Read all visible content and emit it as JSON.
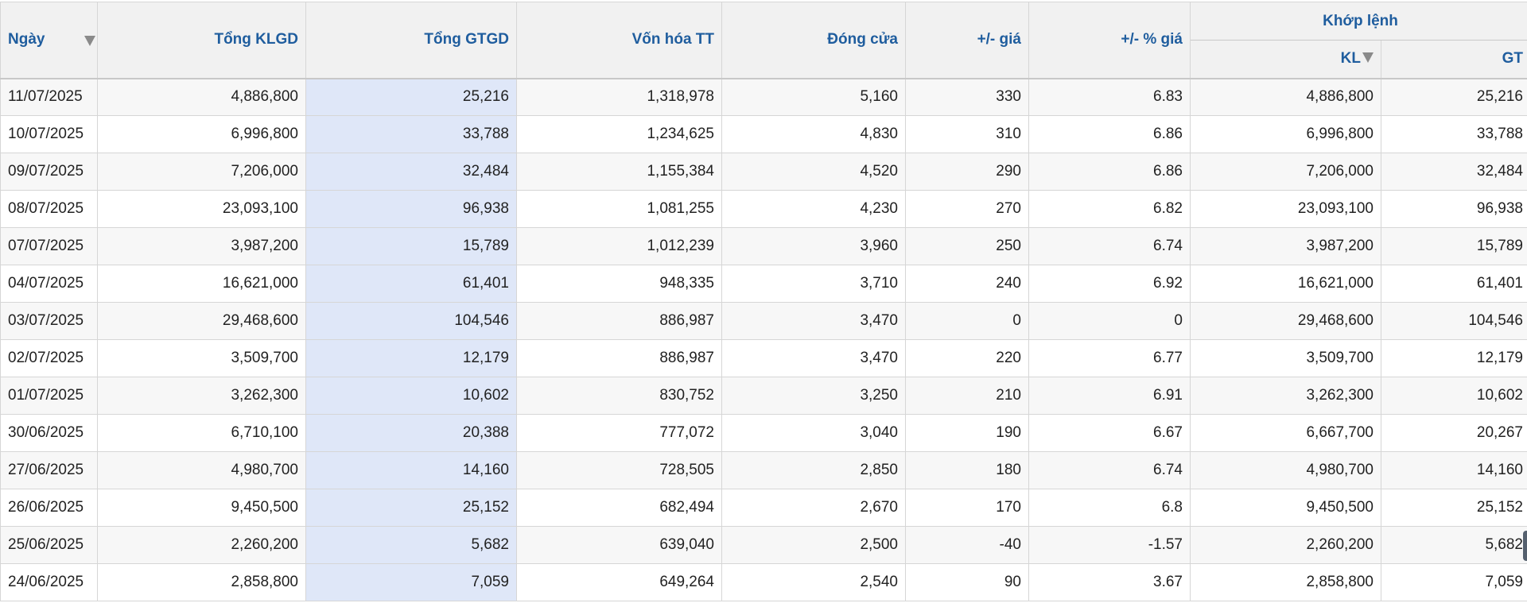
{
  "headers": {
    "date": "Ngày",
    "tong_klgd": "Tổng KLGD",
    "tong_gtgd": "Tổng GTGD",
    "von_hoa": "Vốn hóa TT",
    "dong_cua": "Đóng cửa",
    "change": "+/- giá",
    "change_pct": "+/- % giá",
    "khop_lenh": "Khớp lệnh",
    "kl": "KL",
    "gt": "GT"
  },
  "icons": {
    "sort_date": "sort-down-icon",
    "sort_kl": "sort-down-icon"
  },
  "colors": {
    "header_text": "#1f5d9e",
    "up": "#d400c8",
    "unchanged": "#f08c00",
    "down": "#e00000",
    "green": "#189018",
    "highlight_column": "#dfe7f8"
  },
  "rows": [
    {
      "date": "11/07/2025",
      "tong_klgd": "4,886,800",
      "tong_gtgd": "25,216",
      "von_hoa": "1,318,978",
      "dong_cua": "5,160",
      "change": "330",
      "change_pct": "6.83",
      "trend": "up",
      "kl": "4,886,800",
      "gt": "25,216"
    },
    {
      "date": "10/07/2025",
      "tong_klgd": "6,996,800",
      "tong_gtgd": "33,788",
      "von_hoa": "1,234,625",
      "dong_cua": "4,830",
      "change": "310",
      "change_pct": "6.86",
      "trend": "up",
      "kl": "6,996,800",
      "gt": "33,788"
    },
    {
      "date": "09/07/2025",
      "tong_klgd": "7,206,000",
      "tong_gtgd": "32,484",
      "von_hoa": "1,155,384",
      "dong_cua": "4,520",
      "change": "290",
      "change_pct": "6.86",
      "trend": "up",
      "kl": "7,206,000",
      "gt": "32,484"
    },
    {
      "date": "08/07/2025",
      "tong_klgd": "23,093,100",
      "tong_gtgd": "96,938",
      "von_hoa": "1,081,255",
      "dong_cua": "4,230",
      "change": "270",
      "change_pct": "6.82",
      "trend": "up",
      "kl": "23,093,100",
      "gt": "96,938"
    },
    {
      "date": "07/07/2025",
      "tong_klgd": "3,987,200",
      "tong_gtgd": "15,789",
      "von_hoa": "1,012,239",
      "dong_cua": "3,960",
      "change": "250",
      "change_pct": "6.74",
      "trend": "up",
      "kl": "3,987,200",
      "gt": "15,789"
    },
    {
      "date": "04/07/2025",
      "tong_klgd": "16,621,000",
      "tong_gtgd": "61,401",
      "von_hoa": "948,335",
      "dong_cua": "3,710",
      "change": "240",
      "change_pct": "6.92",
      "trend": "up",
      "kl": "16,621,000",
      "gt": "61,401"
    },
    {
      "date": "03/07/2025",
      "tong_klgd": "29,468,600",
      "tong_gtgd": "104,546",
      "von_hoa": "886,987",
      "dong_cua": "3,470",
      "change": "0",
      "change_pct": "0",
      "trend": "zero",
      "kl": "29,468,600",
      "gt": "104,546"
    },
    {
      "date": "02/07/2025",
      "tong_klgd": "3,509,700",
      "tong_gtgd": "12,179",
      "von_hoa": "886,987",
      "dong_cua": "3,470",
      "change": "220",
      "change_pct": "6.77",
      "trend": "up",
      "kl": "3,509,700",
      "gt": "12,179"
    },
    {
      "date": "01/07/2025",
      "tong_klgd": "3,262,300",
      "tong_gtgd": "10,602",
      "von_hoa": "830,752",
      "dong_cua": "3,250",
      "change": "210",
      "change_pct": "6.91",
      "trend": "up",
      "kl": "3,262,300",
      "gt": "10,602"
    },
    {
      "date": "30/06/2025",
      "tong_klgd": "6,710,100",
      "tong_gtgd": "20,388",
      "von_hoa": "777,072",
      "dong_cua": "3,040",
      "change": "190",
      "change_pct": "6.67",
      "trend": "up",
      "kl": "6,667,700",
      "gt": "20,267"
    },
    {
      "date": "27/06/2025",
      "tong_klgd": "4,980,700",
      "tong_gtgd": "14,160",
      "von_hoa": "728,505",
      "dong_cua": "2,850",
      "change": "180",
      "change_pct": "6.74",
      "trend": "up",
      "kl": "4,980,700",
      "gt": "14,160"
    },
    {
      "date": "26/06/2025",
      "tong_klgd": "9,450,500",
      "tong_gtgd": "25,152",
      "von_hoa": "682,494",
      "dong_cua": "2,670",
      "change": "170",
      "change_pct": "6.8",
      "trend": "up",
      "kl": "9,450,500",
      "gt": "25,152"
    },
    {
      "date": "25/06/2025",
      "tong_klgd": "2,260,200",
      "tong_gtgd": "5,682",
      "von_hoa": "639,040",
      "dong_cua": "2,500",
      "change": "-40",
      "change_pct": "-1.57",
      "trend": "down",
      "kl": "2,260,200",
      "gt": "5,682"
    },
    {
      "date": "24/06/2025",
      "tong_klgd": "2,858,800",
      "tong_gtgd": "7,059",
      "von_hoa": "649,264",
      "dong_cua": "2,540",
      "change": "90",
      "change_pct": "3.67",
      "trend": "green",
      "kl": "2,858,800",
      "gt": "7,059"
    }
  ]
}
